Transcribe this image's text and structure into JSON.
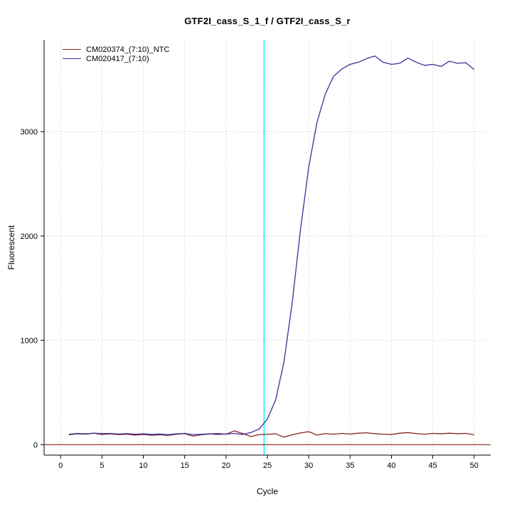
{
  "chart_data": {
    "type": "line",
    "title": "GTF2I_cass_S_1_f / GTF2I_cass_S_r",
    "xlabel": "Cycle",
    "ylabel": "Fluorescent",
    "xticks": [
      0,
      5,
      10,
      15,
      20,
      25,
      30,
      35,
      40,
      45,
      50
    ],
    "yticks": [
      0,
      1000,
      2000,
      3000
    ],
    "xlim": [
      -2,
      52
    ],
    "ylim": [
      -100,
      3880
    ],
    "grid": "dotted",
    "grid_color": "#bebebe",
    "legend_position": "top-left",
    "threshold_line": {
      "x": 24.6,
      "color": "#00eeee"
    },
    "baseline": {
      "y": 0,
      "color": "#8b2323"
    },
    "x": [
      1,
      2,
      3,
      4,
      5,
      6,
      7,
      8,
      9,
      10,
      11,
      12,
      13,
      14,
      15,
      16,
      17,
      18,
      19,
      20,
      21,
      22,
      23,
      24,
      25,
      26,
      27,
      28,
      29,
      30,
      31,
      32,
      33,
      34,
      35,
      36,
      37,
      38,
      39,
      40,
      41,
      42,
      43,
      44,
      45,
      46,
      47,
      48,
      49,
      50
    ],
    "series": [
      {
        "name": "CM020374_(7:10)_NTC",
        "color": "#8b2323",
        "values": [
          95,
          105,
          100,
          110,
          98,
          104,
          96,
          100,
          92,
          98,
          90,
          95,
          88,
          100,
          106,
          82,
          95,
          102,
          108,
          100,
          132,
          108,
          78,
          96,
          100,
          104,
          72,
          95,
          112,
          125,
          92,
          106,
          100,
          108,
          102,
          110,
          114,
          105,
          100,
          98,
          110,
          116,
          106,
          100,
          108,
          104,
          110,
          105,
          108,
          95
        ]
      },
      {
        "name": "CM020417_(7:10)",
        "color": "#333399",
        "values": [
          100,
          108,
          104,
          110,
          106,
          108,
          102,
          106,
          100,
          104,
          98,
          102,
          96,
          104,
          108,
          96,
          100,
          104,
          98,
          102,
          108,
          98,
          116,
          150,
          245,
          430,
          790,
          1360,
          2060,
          2660,
          3090,
          3360,
          3530,
          3600,
          3645,
          3665,
          3700,
          3725,
          3665,
          3645,
          3655,
          3705,
          3665,
          3635,
          3645,
          3625,
          3675,
          3655,
          3660,
          3595
        ]
      }
    ]
  }
}
